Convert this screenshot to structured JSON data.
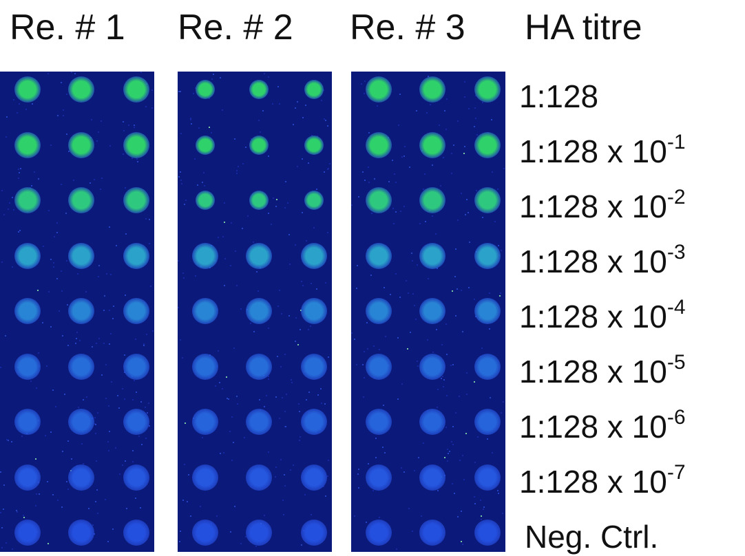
{
  "headers": [
    "Re. # 1",
    "Re. # 2",
    "Re. # 3",
    "HA titre"
  ],
  "rows": [
    {
      "base": "1:128",
      "exponent": "",
      "level": 1.0
    },
    {
      "base": "1:128 x 10",
      "exponent": "-1",
      "level": 0.92
    },
    {
      "base": "1:128 x 10",
      "exponent": "-2",
      "level": 0.84
    },
    {
      "base": "1:128 x 10",
      "exponent": "-3",
      "level": 0.62
    },
    {
      "base": "1:128 x 10",
      "exponent": "-4",
      "level": 0.48
    },
    {
      "base": "1:128 x 10",
      "exponent": "-5",
      "level": 0.38
    },
    {
      "base": "1:128 x 10",
      "exponent": "-6",
      "level": 0.34
    },
    {
      "base": "1:128 x 10",
      "exponent": "-7",
      "level": 0.28
    },
    {
      "base": "Neg. Ctrl.",
      "exponent": "",
      "level": 0.25
    }
  ],
  "colors": {
    "background": "#ffffff",
    "panel": "#0b1a7a",
    "spot_high": "#2fd26a",
    "spot_mid": "#2a9fd0",
    "spot_low": "#2450e0"
  }
}
